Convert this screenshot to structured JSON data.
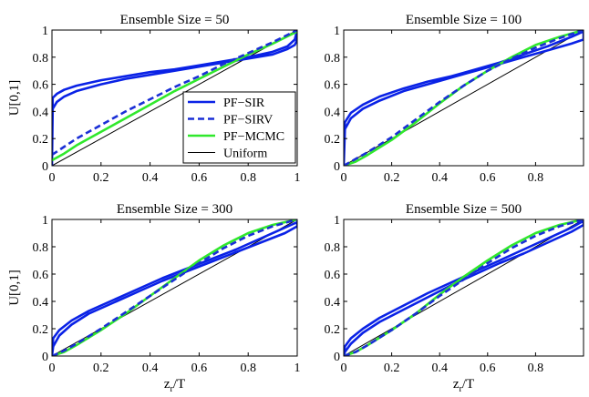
{
  "figure": {
    "ylabel": "U[0,1]",
    "xlabel_main": "z",
    "xlabel_sub": "r",
    "xlabel_tail": "/T"
  },
  "legend": {
    "entries": [
      {
        "label": "PF−SIR",
        "color": "#0a22e6",
        "dash": "solid",
        "width": "thick"
      },
      {
        "label": "PF−SIRV",
        "color": "#1a2fd6",
        "dash": "dashed",
        "width": "thick"
      },
      {
        "label": "PF−MCMC",
        "color": "#30e82c",
        "dash": "solid",
        "width": "thick"
      },
      {
        "label": "Uniform",
        "color": "#000000",
        "dash": "solid",
        "width": "thin"
      }
    ]
  },
  "chart_data": [
    {
      "type": "line",
      "title": "Ensemble Size = 50",
      "xlim": [
        0,
        1
      ],
      "ylim": [
        0,
        1
      ],
      "xticks": [
        "0",
        "0.2",
        "0.4",
        "0.6",
        "0.8",
        "1"
      ],
      "yticks": [
        "0",
        "0.2",
        "0.4",
        "0.6",
        "0.8",
        "1"
      ],
      "show_ylabel": true,
      "show_xlabel": false,
      "legend": "right-center",
      "series": [
        {
          "name": "PF−SIR",
          "x": [
            0,
            0.003,
            0.02,
            0.05,
            0.1,
            0.2,
            0.3,
            0.4,
            0.5,
            0.6,
            0.7,
            0.8,
            0.9,
            0.96,
            0.99,
            1.0
          ],
          "upper": [
            0,
            0.5,
            0.53,
            0.56,
            0.59,
            0.63,
            0.66,
            0.69,
            0.71,
            0.74,
            0.77,
            0.8,
            0.84,
            0.88,
            0.93,
            1.0
          ],
          "lower": [
            0,
            0.42,
            0.47,
            0.51,
            0.55,
            0.6,
            0.64,
            0.67,
            0.7,
            0.73,
            0.76,
            0.79,
            0.82,
            0.86,
            0.89,
            0.93
          ]
        },
        {
          "name": "PF−SIRV",
          "x": [
            0,
            0.05,
            0.1,
            0.2,
            0.3,
            0.4,
            0.5,
            0.6,
            0.7,
            0.8,
            0.9,
            1.0
          ],
          "y": [
            0.08,
            0.14,
            0.2,
            0.3,
            0.4,
            0.49,
            0.58,
            0.66,
            0.75,
            0.83,
            0.91,
            1.0
          ]
        },
        {
          "name": "PF−MCMC",
          "x": [
            0,
            0.05,
            0.1,
            0.2,
            0.3,
            0.4,
            0.5,
            0.6,
            0.7,
            0.8,
            0.9,
            1.0
          ],
          "y": [
            0.04,
            0.09,
            0.15,
            0.25,
            0.35,
            0.45,
            0.55,
            0.64,
            0.73,
            0.82,
            0.9,
            0.99
          ]
        },
        {
          "name": "Uniform",
          "x": [
            0,
            1
          ],
          "y": [
            0,
            1
          ]
        }
      ]
    },
    {
      "type": "line",
      "title": "Ensemble Size = 100",
      "xlim": [
        0,
        1
      ],
      "ylim": [
        0,
        1
      ],
      "xticks": [
        "0",
        "0.2",
        "0.4",
        "0.6",
        "0.8"
      ],
      "yticks": [
        "0",
        "0.2",
        "0.4",
        "0.6",
        "0.8",
        "1"
      ],
      "show_ylabel": false,
      "show_xlabel": false,
      "series": [
        {
          "name": "PF−SIR",
          "x": [
            0,
            0.005,
            0.03,
            0.08,
            0.15,
            0.25,
            0.35,
            0.45,
            0.55,
            0.65,
            0.75,
            0.85,
            0.95,
            1.0
          ],
          "upper": [
            0,
            0.32,
            0.39,
            0.45,
            0.51,
            0.57,
            0.62,
            0.66,
            0.71,
            0.76,
            0.82,
            0.88,
            0.95,
            0.99
          ],
          "lower": [
            0,
            0.27,
            0.35,
            0.42,
            0.48,
            0.55,
            0.6,
            0.65,
            0.7,
            0.75,
            0.8,
            0.85,
            0.9,
            0.93
          ]
        },
        {
          "name": "PF−SIRV",
          "x": [
            0,
            0.05,
            0.1,
            0.2,
            0.3,
            0.4,
            0.5,
            0.6,
            0.7,
            0.8,
            0.9,
            1.0
          ],
          "y": [
            0,
            0.05,
            0.1,
            0.21,
            0.34,
            0.47,
            0.59,
            0.7,
            0.79,
            0.87,
            0.94,
            1.0
          ]
        },
        {
          "name": "PF−MCMC",
          "x": [
            0,
            0.05,
            0.1,
            0.2,
            0.3,
            0.4,
            0.5,
            0.6,
            0.7,
            0.8,
            0.9,
            1.0
          ],
          "y": [
            0,
            0.03,
            0.08,
            0.19,
            0.32,
            0.46,
            0.59,
            0.7,
            0.8,
            0.89,
            0.95,
            1.0
          ]
        },
        {
          "name": "Uniform",
          "x": [
            0,
            1
          ],
          "y": [
            0,
            1
          ]
        }
      ]
    },
    {
      "type": "line",
      "title": "Ensemble Size = 300",
      "xlim": [
        0,
        1
      ],
      "ylim": [
        0,
        1
      ],
      "xticks": [
        "0",
        "0.2",
        "0.4",
        "0.6",
        "0.8",
        "1"
      ],
      "yticks": [
        "0",
        "0.2",
        "0.4",
        "0.6",
        "0.8",
        "1"
      ],
      "show_ylabel": true,
      "show_xlabel": true,
      "series": [
        {
          "name": "PF−SIR",
          "x": [
            0,
            0.005,
            0.03,
            0.08,
            0.15,
            0.25,
            0.35,
            0.45,
            0.55,
            0.65,
            0.75,
            0.85,
            0.95,
            1.0
          ],
          "upper": [
            0,
            0.13,
            0.19,
            0.26,
            0.33,
            0.41,
            0.49,
            0.57,
            0.64,
            0.71,
            0.78,
            0.86,
            0.94,
            0.98
          ],
          "lower": [
            0,
            0.07,
            0.15,
            0.23,
            0.31,
            0.39,
            0.47,
            0.55,
            0.62,
            0.69,
            0.76,
            0.83,
            0.9,
            0.95
          ]
        },
        {
          "name": "PF−SIRV",
          "x": [
            0,
            0.05,
            0.1,
            0.2,
            0.3,
            0.4,
            0.5,
            0.6,
            0.7,
            0.8,
            0.9,
            1.0
          ],
          "y": [
            0,
            0.04,
            0.09,
            0.2,
            0.32,
            0.44,
            0.56,
            0.68,
            0.79,
            0.88,
            0.95,
            1.0
          ]
        },
        {
          "name": "PF−MCMC",
          "x": [
            0,
            0.05,
            0.1,
            0.2,
            0.3,
            0.4,
            0.5,
            0.6,
            0.7,
            0.8,
            0.9,
            1.0
          ],
          "y": [
            0,
            0.03,
            0.08,
            0.19,
            0.31,
            0.44,
            0.57,
            0.7,
            0.81,
            0.9,
            0.96,
            1.0
          ]
        },
        {
          "name": "Uniform",
          "x": [
            0,
            1
          ],
          "y": [
            0,
            1
          ]
        }
      ]
    },
    {
      "type": "line",
      "title": "Ensemble Size = 500",
      "xlim": [
        0,
        1
      ],
      "ylim": [
        0,
        1
      ],
      "xticks": [
        "0",
        "0.2",
        "0.4",
        "0.6",
        "0.8"
      ],
      "yticks": [
        "0",
        "0.2",
        "0.4",
        "0.6",
        "0.8",
        "1"
      ],
      "show_ylabel": false,
      "show_xlabel": true,
      "series": [
        {
          "name": "PF−SIR",
          "x": [
            0,
            0.005,
            0.03,
            0.08,
            0.15,
            0.25,
            0.35,
            0.45,
            0.55,
            0.65,
            0.75,
            0.85,
            0.95,
            1.0
          ],
          "upper": [
            0,
            0.07,
            0.13,
            0.2,
            0.28,
            0.37,
            0.46,
            0.54,
            0.62,
            0.7,
            0.78,
            0.86,
            0.94,
            0.99
          ],
          "lower": [
            0,
            0.03,
            0.09,
            0.17,
            0.25,
            0.34,
            0.43,
            0.52,
            0.6,
            0.68,
            0.75,
            0.83,
            0.91,
            0.96
          ]
        },
        {
          "name": "PF−SIRV",
          "x": [
            0,
            0.05,
            0.1,
            0.2,
            0.3,
            0.4,
            0.5,
            0.6,
            0.7,
            0.8,
            0.9,
            1.0
          ],
          "y": [
            0,
            0.03,
            0.08,
            0.19,
            0.31,
            0.44,
            0.56,
            0.68,
            0.79,
            0.88,
            0.95,
            1.0
          ]
        },
        {
          "name": "PF−MCMC",
          "x": [
            0,
            0.05,
            0.1,
            0.2,
            0.3,
            0.4,
            0.5,
            0.6,
            0.7,
            0.8,
            0.9,
            1.0
          ],
          "y": [
            0,
            0.03,
            0.08,
            0.19,
            0.31,
            0.45,
            0.58,
            0.7,
            0.81,
            0.9,
            0.96,
            1.0
          ]
        },
        {
          "name": "Uniform",
          "x": [
            0,
            1
          ],
          "y": [
            0,
            1
          ]
        }
      ]
    }
  ]
}
